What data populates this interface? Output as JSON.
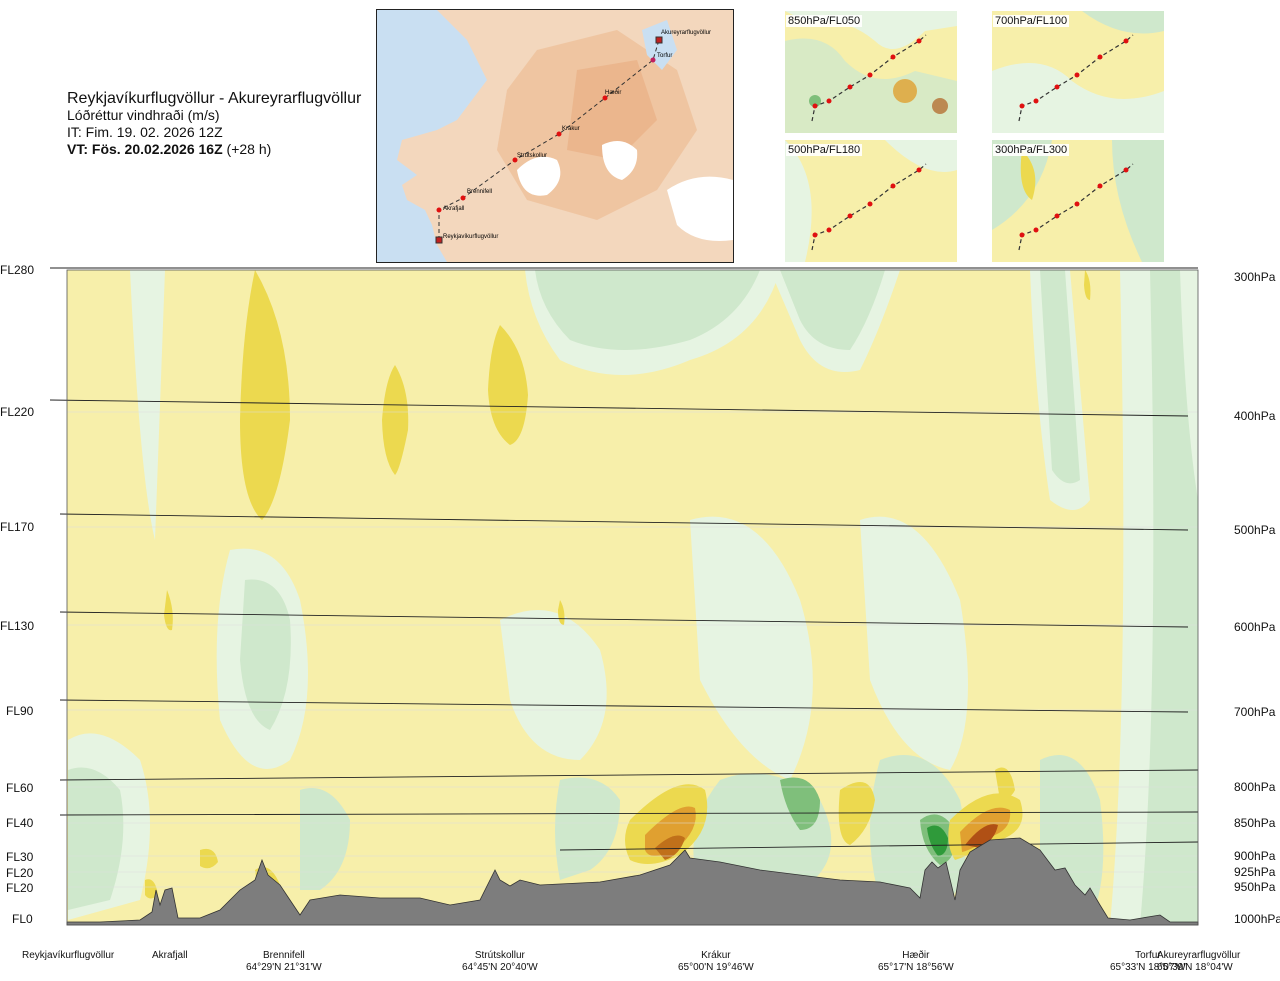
{
  "header": {
    "route_title": "Reykjavíkurflugvöllur - Akureyrarflugvöllur",
    "subtitle": "Lóðréttur vindhraði (m/s)",
    "issue_time": "IT: Fim. 19. 02. 2026 12Z",
    "valid_time_bold": "VT: Fös. 20.02.2026 16Z",
    "valid_time_offset": "(+28 h)"
  },
  "route_map": {
    "points": [
      "Akureyrarflugvöllur",
      "Torfur",
      "Hæðir",
      "Krákur",
      "Strútskollur",
      "Brennifell",
      "Akrafjall",
      "Reykjavíkurflugvöllur"
    ]
  },
  "level_panels": [
    {
      "label": "850hPa/FL050"
    },
    {
      "label": "700hPa/FL100"
    },
    {
      "label": "500hPa/FL180"
    },
    {
      "label": "300hPa/FL300"
    }
  ],
  "flight_levels": [
    "FL280",
    "FL220",
    "FL170",
    "FL130",
    "FL90",
    "FL60",
    "FL40",
    "FL30",
    "FL20",
    "FL20",
    "FL0"
  ],
  "pressure_levels": [
    "300hPa",
    "400hPa",
    "500hPa",
    "600hPa",
    "700hPa",
    "800hPa",
    "850hPa",
    "900hPa",
    "925hPa",
    "950hPa",
    "1000hPa"
  ],
  "locations": [
    {
      "name": "Reykjavíkurflugvöllur",
      "coords": ""
    },
    {
      "name": "Akrafjall",
      "coords": ""
    },
    {
      "name": "Brennifell",
      "coords": "64°29'N 21°31'W"
    },
    {
      "name": "Strútskollur",
      "coords": "64°45'N 20°40'W"
    },
    {
      "name": "Krákur",
      "coords": "65°00'N 19°46'W"
    },
    {
      "name": "Hæðir",
      "coords": "65°17'N 18°56'W"
    },
    {
      "name": "Torfur",
      "coords": "65°33'N 18°07'W"
    },
    {
      "name": "Akureyrarflugvöllur",
      "coords": "65°39'N 18°04'W"
    }
  ],
  "colors": {
    "neutral": "#f7efaa",
    "downdraft_light": "#e6f4e2",
    "downdraft": "#cfe8cc",
    "downdraft_strong": "#7fbf7b",
    "updraft": "#ecd94f",
    "updraft_strong": "#e0a030",
    "terrain": "#7d7d7d",
    "route_point": "#e01010"
  }
}
